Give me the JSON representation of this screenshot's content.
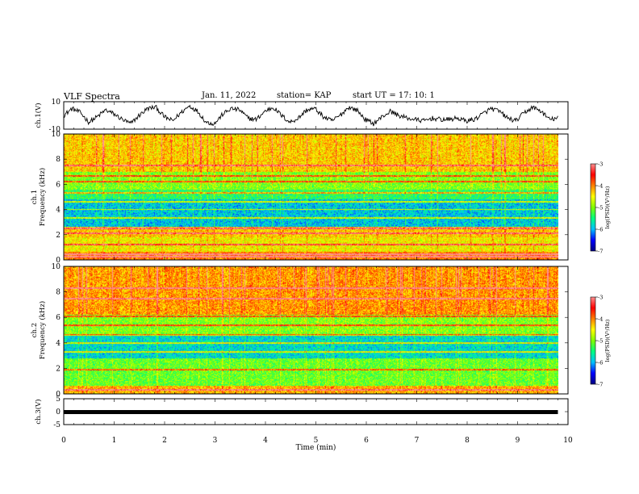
{
  "header": {
    "title": "VLF Spectra",
    "date": "Jan. 11, 2022",
    "station": "station= KAP",
    "start": "start  UT =   17: 10: 1"
  },
  "colors": {
    "trace": "#000000",
    "cmap": [
      "#000080",
      "#0000ff",
      "#00c0ff",
      "#00ff80",
      "#80ff00",
      "#ffff00",
      "#ff8000",
      "#ff0000",
      "#ff9090",
      "#ffffff"
    ]
  },
  "chart_data": [
    {
      "id": "ch1-waveform",
      "type": "line",
      "ylabel": "ch.1(V)",
      "ylim": [
        -10,
        10
      ],
      "yticks": [
        "10",
        "-10"
      ],
      "xlim": [
        0,
        10
      ],
      "x_extent": [
        0,
        9.8
      ],
      "series": [
        {
          "values": [
            0,
            5,
            2,
            -5,
            -1,
            4,
            1,
            -3,
            -6,
            0,
            5,
            6,
            -1,
            -4,
            2,
            7,
            3,
            -5,
            -6,
            1,
            5,
            4,
            -2,
            -3,
            3,
            6,
            0,
            -5,
            -2,
            4,
            5,
            -1,
            -4,
            0,
            6,
            4,
            -3,
            -6,
            -1,
            3,
            0,
            -2,
            -3,
            -4,
            -2,
            -3,
            -3,
            -2,
            -4,
            -3,
            1,
            5,
            3,
            -2,
            -4,
            2,
            6,
            3,
            -3,
            -2
          ]
        }
      ]
    },
    {
      "id": "ch1-spectrogram",
      "type": "heatmap",
      "ylabel": "ch.1\nFrequency (kHz)",
      "ylim": [
        0,
        10
      ],
      "yticks": [
        "0",
        "2",
        "4",
        "6",
        "8",
        "10"
      ],
      "xlim": [
        0,
        10
      ],
      "x_extent": [
        0,
        9.8
      ],
      "colorbar": {
        "label": "log(PSD)(V²/Hz)",
        "range": [
          -7,
          -3
        ],
        "ticks": [
          "-3",
          "-4",
          "-5",
          "-6",
          "-7"
        ]
      },
      "band_levels": [
        {
          "f": [
            0.0,
            0.6
          ],
          "level": -4.0
        },
        {
          "f": [
            0.6,
            1.8
          ],
          "level": -4.5
        },
        {
          "f": [
            1.8,
            2.6
          ],
          "level": -4.3
        },
        {
          "f": [
            2.6,
            4.8
          ],
          "level": -5.9
        },
        {
          "f": [
            4.8,
            5.6
          ],
          "level": -5.4
        },
        {
          "f": [
            5.6,
            7.0
          ],
          "level": -5.0
        },
        {
          "f": [
            7.0,
            10.0
          ],
          "level": -4.3
        }
      ],
      "lines_khz": [
        0.2,
        0.4,
        1.2,
        2.1,
        2.5,
        3.3,
        4.0,
        4.6,
        5.3,
        6.2,
        6.7,
        7.5
      ]
    },
    {
      "id": "ch2-spectrogram",
      "type": "heatmap",
      "ylabel": "ch.2\nFrequency (kHz)",
      "ylim": [
        0,
        10
      ],
      "yticks": [
        "0",
        "2",
        "4",
        "6",
        "8",
        "10"
      ],
      "xlim": [
        0,
        10
      ],
      "x_extent": [
        0,
        9.8
      ],
      "colorbar": {
        "label": "log(PSD)(V²/Hz)",
        "range": [
          -7,
          -3
        ],
        "ticks": [
          "-3",
          "-4",
          "-5",
          "-6",
          "-7"
        ]
      },
      "band_levels": [
        {
          "f": [
            0.0,
            0.6
          ],
          "level": -4.2
        },
        {
          "f": [
            0.6,
            2.8
          ],
          "level": -5.1
        },
        {
          "f": [
            2.8,
            4.6
          ],
          "level": -5.8
        },
        {
          "f": [
            4.6,
            6.2
          ],
          "level": -5.0
        },
        {
          "f": [
            6.2,
            10.0
          ],
          "level": -4.1
        }
      ],
      "lines_khz": [
        0.3,
        1.9,
        3.3,
        4.0,
        4.6,
        5.4,
        6.1,
        7.5,
        8.3
      ]
    },
    {
      "id": "ch3-waveform",
      "type": "line",
      "ylabel": "ch.3(V)",
      "ylim": [
        -5,
        5
      ],
      "yticks": [
        "5",
        "0",
        "-5"
      ],
      "xlim": [
        0,
        10
      ],
      "x_extent": [
        0,
        9.8
      ],
      "xlabel": "Time (min)",
      "xticks": [
        "0",
        "1",
        "2",
        "3",
        "4",
        "5",
        "6",
        "7",
        "8",
        "9",
        "10"
      ],
      "series": [
        {
          "values": [
            0,
            0
          ]
        }
      ]
    }
  ]
}
